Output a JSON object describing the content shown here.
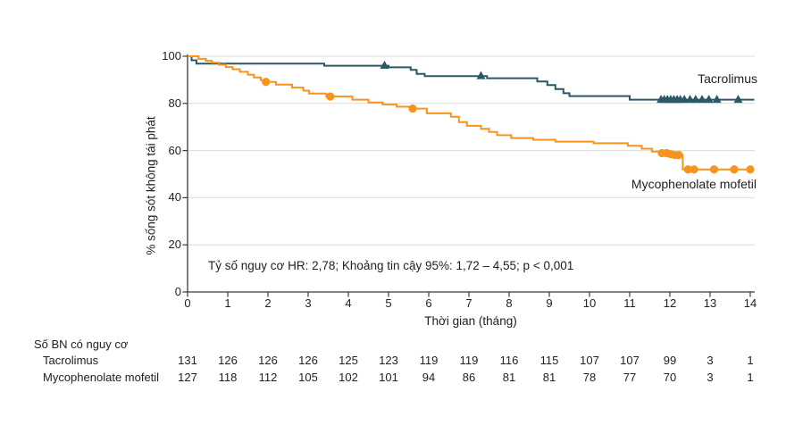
{
  "chart_data": {
    "type": "line",
    "subtype": "kaplan-meier-step",
    "xlabel": "Thời gian (tháng)",
    "ylabel": "% sống sót không tái phát",
    "xlim": [
      0,
      14.2
    ],
    "ylim": [
      0,
      100
    ],
    "xticks": [
      0,
      1,
      2,
      3,
      4,
      5,
      6,
      7,
      8,
      9,
      10,
      11,
      12,
      13,
      14
    ],
    "yticks": [
      0,
      20,
      40,
      60,
      80,
      100
    ],
    "grid": "horizontal",
    "grid_color": "#DBDBDB",
    "axis_color": "#3a3a3a",
    "annotation": "Tỷ số nguy cơ HR: 2,78; Khoảng tin cậy 95%: 1,72 – 4,55; p < 0,001",
    "series": [
      {
        "name": "Tacrolimus",
        "color": "#2B5866",
        "marker": "triangle",
        "steps": [
          [
            0,
            100
          ],
          [
            0.1,
            98.3
          ],
          [
            0.22,
            96.9
          ],
          [
            3.4,
            96.0
          ],
          [
            5.0,
            95.3
          ],
          [
            5.55,
            94.2
          ],
          [
            5.7,
            92.5
          ],
          [
            5.9,
            91.6
          ],
          [
            7.45,
            90.7
          ],
          [
            8.7,
            89.3
          ],
          [
            8.95,
            87.8
          ],
          [
            9.15,
            86.1
          ],
          [
            9.35,
            84.3
          ],
          [
            9.5,
            83.1
          ],
          [
            11.0,
            81.6
          ],
          [
            14.1,
            81.6
          ]
        ],
        "censor_points": [
          [
            4.9,
            96.0
          ],
          [
            7.3,
            91.6
          ],
          [
            11.78,
            81.6
          ],
          [
            11.86,
            81.6
          ],
          [
            11.94,
            81.6
          ],
          [
            12.02,
            81.6
          ],
          [
            12.1,
            81.6
          ],
          [
            12.18,
            81.6
          ],
          [
            12.26,
            81.6
          ],
          [
            12.36,
            81.6
          ],
          [
            12.5,
            81.6
          ],
          [
            12.64,
            81.6
          ],
          [
            12.8,
            81.6
          ],
          [
            12.97,
            81.6
          ],
          [
            13.17,
            81.6
          ],
          [
            13.7,
            81.6
          ]
        ]
      },
      {
        "name": "Mycophenolate mofetil",
        "color": "#F7941E",
        "marker": "circle",
        "steps": [
          [
            0,
            100
          ],
          [
            0.27,
            98.9
          ],
          [
            0.45,
            98.1
          ],
          [
            0.6,
            97.3
          ],
          [
            0.78,
            96.4
          ],
          [
            0.95,
            95.4
          ],
          [
            1.12,
            94.5
          ],
          [
            1.3,
            93.4
          ],
          [
            1.5,
            92.2
          ],
          [
            1.65,
            91.0
          ],
          [
            1.82,
            89.9
          ],
          [
            1.95,
            89.1
          ],
          [
            2.2,
            88.0
          ],
          [
            2.6,
            86.7
          ],
          [
            2.88,
            85.4
          ],
          [
            3.02,
            84.2
          ],
          [
            3.45,
            82.9
          ],
          [
            4.1,
            81.6
          ],
          [
            4.5,
            80.4
          ],
          [
            4.85,
            79.5
          ],
          [
            5.2,
            78.6
          ],
          [
            5.55,
            77.8
          ],
          [
            5.95,
            75.8
          ],
          [
            6.55,
            74.3
          ],
          [
            6.75,
            72.0
          ],
          [
            6.95,
            70.5
          ],
          [
            7.3,
            69.2
          ],
          [
            7.5,
            67.9
          ],
          [
            7.7,
            66.5
          ],
          [
            8.05,
            65.3
          ],
          [
            8.6,
            64.6
          ],
          [
            9.15,
            63.8
          ],
          [
            10.1,
            63.1
          ],
          [
            10.95,
            62.0
          ],
          [
            11.3,
            60.8
          ],
          [
            11.55,
            59.6
          ],
          [
            11.85,
            58.9
          ],
          [
            12.1,
            58.1
          ],
          [
            12.32,
            52.0
          ],
          [
            14.05,
            52.0
          ]
        ],
        "censor_points": [
          [
            1.95,
            89.1
          ],
          [
            3.55,
            82.9
          ],
          [
            5.6,
            77.8
          ],
          [
            11.8,
            58.9
          ],
          [
            11.92,
            58.9
          ],
          [
            12.02,
            58.5
          ],
          [
            12.12,
            58.1
          ],
          [
            12.22,
            58.1
          ],
          [
            12.45,
            52.0
          ],
          [
            12.6,
            52.0
          ],
          [
            13.1,
            52.0
          ],
          [
            13.6,
            52.0
          ],
          [
            14.0,
            52.0
          ]
        ]
      }
    ],
    "risk_table": {
      "header": "Số BN có nguy cơ",
      "rows": [
        {
          "label": "Tacrolimus",
          "values": [
            131,
            126,
            126,
            126,
            125,
            123,
            119,
            119,
            116,
            115,
            107,
            107,
            99,
            3,
            1
          ]
        },
        {
          "label": "Mycophenolate mofetil",
          "values": [
            127,
            118,
            112,
            105,
            102,
            101,
            94,
            86,
            81,
            81,
            78,
            77,
            70,
            3,
            1
          ]
        }
      ]
    }
  }
}
